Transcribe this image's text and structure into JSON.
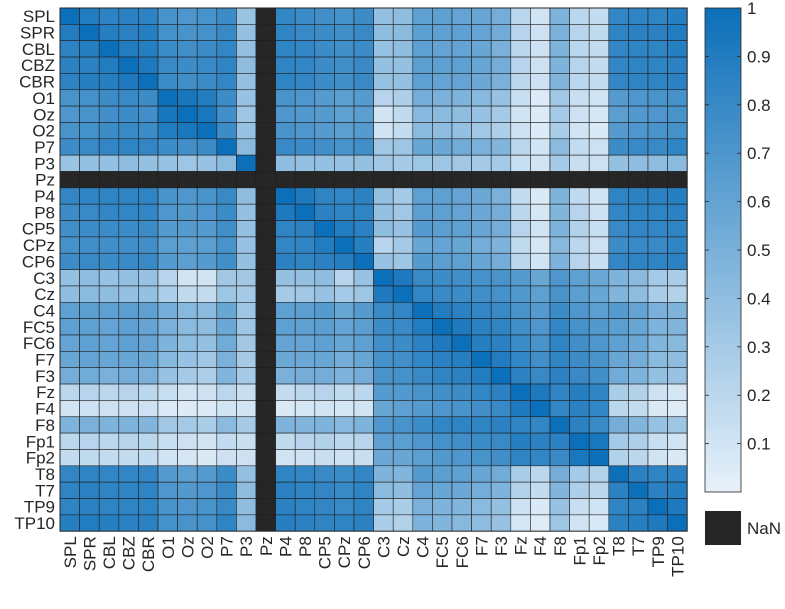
{
  "chart_data": {
    "type": "heatmap",
    "labels": [
      "SPL",
      "SPR",
      "CBL",
      "CBZ",
      "CBR",
      "O1",
      "Oz",
      "O2",
      "P7",
      "P3",
      "Pz",
      "P4",
      "P8",
      "CP5",
      "CPz",
      "CP6",
      "C3",
      "Cz",
      "C4",
      "FC5",
      "FC6",
      "F7",
      "F3",
      "Fz",
      "F4",
      "F8",
      "Fp1",
      "Fp2",
      "T8",
      "T7",
      "TP9",
      "TP10"
    ],
    "nan_index": 10,
    "values": [
      [
        1.0,
        0.9,
        0.85,
        0.86,
        0.85,
        0.72,
        0.7,
        0.72,
        0.78,
        0.35,
        null,
        0.82,
        0.78,
        0.76,
        0.74,
        0.78,
        0.38,
        0.4,
        0.62,
        0.62,
        0.6,
        0.58,
        0.52,
        0.2,
        0.1,
        0.48,
        0.2,
        0.16,
        0.82,
        0.84,
        0.84,
        0.88
      ],
      [
        0.9,
        1.0,
        0.88,
        0.86,
        0.88,
        0.74,
        0.72,
        0.74,
        0.8,
        0.38,
        null,
        0.84,
        0.8,
        0.78,
        0.76,
        0.8,
        0.4,
        0.42,
        0.64,
        0.62,
        0.62,
        0.6,
        0.54,
        0.22,
        0.12,
        0.5,
        0.22,
        0.18,
        0.84,
        0.86,
        0.86,
        0.9
      ],
      [
        0.85,
        0.88,
        1.0,
        0.9,
        0.88,
        0.78,
        0.76,
        0.78,
        0.82,
        0.38,
        null,
        0.84,
        0.82,
        0.78,
        0.76,
        0.78,
        0.36,
        0.4,
        0.62,
        0.6,
        0.6,
        0.58,
        0.5,
        0.2,
        0.12,
        0.48,
        0.2,
        0.16,
        0.82,
        0.84,
        0.84,
        0.88
      ],
      [
        0.86,
        0.86,
        0.9,
        1.0,
        0.92,
        0.8,
        0.78,
        0.8,
        0.84,
        0.4,
        null,
        0.84,
        0.82,
        0.78,
        0.76,
        0.8,
        0.38,
        0.38,
        0.64,
        0.62,
        0.62,
        0.58,
        0.52,
        0.22,
        0.12,
        0.48,
        0.22,
        0.16,
        0.82,
        0.84,
        0.84,
        0.86
      ],
      [
        0.85,
        0.88,
        0.88,
        0.92,
        1.0,
        0.78,
        0.76,
        0.78,
        0.82,
        0.38,
        null,
        0.84,
        0.82,
        0.78,
        0.76,
        0.8,
        0.36,
        0.38,
        0.62,
        0.6,
        0.6,
        0.56,
        0.5,
        0.2,
        0.12,
        0.46,
        0.2,
        0.16,
        0.82,
        0.84,
        0.84,
        0.86
      ],
      [
        0.72,
        0.74,
        0.78,
        0.8,
        0.78,
        1.0,
        0.95,
        0.9,
        0.78,
        0.36,
        null,
        0.72,
        0.7,
        0.66,
        0.64,
        0.66,
        0.22,
        0.26,
        0.52,
        0.5,
        0.48,
        0.44,
        0.36,
        0.14,
        0.05,
        0.32,
        0.14,
        0.1,
        0.66,
        0.7,
        0.72,
        0.74
      ],
      [
        0.7,
        0.72,
        0.76,
        0.78,
        0.76,
        0.95,
        1.0,
        0.94,
        0.76,
        0.34,
        null,
        0.7,
        0.68,
        0.66,
        0.62,
        0.64,
        0.1,
        0.18,
        0.44,
        0.42,
        0.4,
        0.36,
        0.3,
        0.1,
        0.05,
        0.3,
        0.12,
        0.08,
        0.64,
        0.68,
        0.7,
        0.72
      ],
      [
        0.72,
        0.74,
        0.78,
        0.8,
        0.78,
        0.9,
        0.94,
        1.0,
        0.78,
        0.36,
        null,
        0.72,
        0.7,
        0.66,
        0.64,
        0.66,
        0.1,
        0.16,
        0.42,
        0.4,
        0.38,
        0.32,
        0.26,
        0.12,
        0.05,
        0.28,
        0.1,
        0.06,
        0.66,
        0.7,
        0.72,
        0.74
      ],
      [
        0.78,
        0.8,
        0.82,
        0.84,
        0.82,
        0.78,
        0.76,
        0.78,
        1.0,
        0.42,
        null,
        0.8,
        0.78,
        0.76,
        0.72,
        0.76,
        0.32,
        0.34,
        0.58,
        0.56,
        0.54,
        0.5,
        0.46,
        0.2,
        0.1,
        0.42,
        0.16,
        0.12,
        0.78,
        0.8,
        0.8,
        0.84
      ],
      [
        0.35,
        0.38,
        0.38,
        0.4,
        0.38,
        0.36,
        0.34,
        0.36,
        0.42,
        1.0,
        null,
        0.4,
        0.38,
        0.38,
        0.36,
        0.38,
        0.32,
        0.3,
        0.34,
        0.34,
        0.32,
        0.3,
        0.3,
        0.14,
        0.1,
        0.3,
        0.14,
        0.12,
        0.38,
        0.4,
        0.4,
        0.42
      ],
      [
        null,
        null,
        null,
        null,
        null,
        null,
        null,
        null,
        null,
        null,
        null,
        null,
        null,
        null,
        null,
        null,
        null,
        null,
        null,
        null,
        null,
        null,
        null,
        null,
        null,
        null,
        null,
        null,
        null,
        null,
        null,
        null
      ],
      [
        0.82,
        0.84,
        0.84,
        0.84,
        0.84,
        0.72,
        0.7,
        0.72,
        0.8,
        0.4,
        null,
        1.0,
        0.92,
        0.84,
        0.82,
        0.86,
        0.38,
        0.3,
        0.62,
        0.62,
        0.6,
        0.56,
        0.5,
        0.16,
        0.06,
        0.48,
        0.18,
        0.1,
        0.84,
        0.86,
        0.86,
        0.88
      ],
      [
        0.78,
        0.8,
        0.82,
        0.82,
        0.82,
        0.7,
        0.68,
        0.7,
        0.78,
        0.38,
        null,
        0.92,
        1.0,
        0.86,
        0.84,
        0.84,
        0.38,
        0.32,
        0.64,
        0.62,
        0.6,
        0.56,
        0.52,
        0.2,
        0.08,
        0.46,
        0.22,
        0.12,
        0.82,
        0.84,
        0.84,
        0.86
      ],
      [
        0.76,
        0.78,
        0.78,
        0.78,
        0.78,
        0.66,
        0.66,
        0.66,
        0.76,
        0.38,
        null,
        0.84,
        0.86,
        1.0,
        0.9,
        0.86,
        0.4,
        0.36,
        0.66,
        0.64,
        0.62,
        0.58,
        0.52,
        0.22,
        0.1,
        0.48,
        0.24,
        0.14,
        0.8,
        0.82,
        0.82,
        0.84
      ],
      [
        0.74,
        0.76,
        0.76,
        0.76,
        0.76,
        0.64,
        0.62,
        0.64,
        0.72,
        0.36,
        null,
        0.82,
        0.84,
        0.9,
        1.0,
        0.88,
        0.22,
        0.3,
        0.58,
        0.6,
        0.58,
        0.52,
        0.48,
        0.18,
        0.08,
        0.44,
        0.2,
        0.12,
        0.78,
        0.8,
        0.8,
        0.84
      ],
      [
        0.78,
        0.8,
        0.78,
        0.8,
        0.8,
        0.66,
        0.64,
        0.66,
        0.76,
        0.38,
        null,
        0.86,
        0.84,
        0.86,
        0.88,
        1.0,
        0.36,
        0.34,
        0.66,
        0.64,
        0.62,
        0.58,
        0.52,
        0.2,
        0.1,
        0.48,
        0.22,
        0.14,
        0.82,
        0.84,
        0.84,
        0.86
      ],
      [
        0.38,
        0.4,
        0.36,
        0.38,
        0.36,
        0.22,
        0.1,
        0.1,
        0.32,
        0.32,
        null,
        0.38,
        0.38,
        0.4,
        0.22,
        0.36,
        1.0,
        0.92,
        0.8,
        0.78,
        0.76,
        0.74,
        0.72,
        0.66,
        0.58,
        0.7,
        0.62,
        0.56,
        0.48,
        0.42,
        0.3,
        0.28
      ],
      [
        0.4,
        0.42,
        0.4,
        0.38,
        0.38,
        0.26,
        0.18,
        0.16,
        0.34,
        0.3,
        null,
        0.3,
        0.32,
        0.36,
        0.3,
        0.34,
        0.92,
        1.0,
        0.82,
        0.8,
        0.78,
        0.76,
        0.74,
        0.68,
        0.62,
        0.72,
        0.64,
        0.58,
        0.46,
        0.4,
        0.28,
        0.24
      ],
      [
        0.62,
        0.64,
        0.62,
        0.64,
        0.62,
        0.52,
        0.44,
        0.42,
        0.58,
        0.34,
        null,
        0.62,
        0.64,
        0.66,
        0.58,
        0.66,
        0.8,
        0.82,
        1.0,
        0.9,
        0.86,
        0.82,
        0.8,
        0.72,
        0.66,
        0.78,
        0.7,
        0.64,
        0.66,
        0.6,
        0.5,
        0.48
      ],
      [
        0.62,
        0.62,
        0.6,
        0.62,
        0.6,
        0.5,
        0.42,
        0.4,
        0.56,
        0.34,
        null,
        0.62,
        0.62,
        0.64,
        0.6,
        0.64,
        0.78,
        0.8,
        0.9,
        1.0,
        0.92,
        0.86,
        0.84,
        0.76,
        0.7,
        0.82,
        0.74,
        0.68,
        0.64,
        0.58,
        0.48,
        0.46
      ],
      [
        0.6,
        0.62,
        0.6,
        0.62,
        0.6,
        0.48,
        0.4,
        0.38,
        0.54,
        0.32,
        null,
        0.6,
        0.6,
        0.62,
        0.58,
        0.62,
        0.76,
        0.78,
        0.86,
        0.92,
        1.0,
        0.88,
        0.86,
        0.78,
        0.72,
        0.84,
        0.76,
        0.7,
        0.62,
        0.56,
        0.46,
        0.44
      ],
      [
        0.58,
        0.6,
        0.58,
        0.58,
        0.56,
        0.44,
        0.36,
        0.32,
        0.5,
        0.3,
        null,
        0.56,
        0.56,
        0.58,
        0.52,
        0.58,
        0.74,
        0.76,
        0.82,
        0.86,
        0.88,
        1.0,
        0.9,
        0.82,
        0.76,
        0.84,
        0.78,
        0.72,
        0.58,
        0.52,
        0.42,
        0.4
      ],
      [
        0.52,
        0.54,
        0.5,
        0.52,
        0.5,
        0.36,
        0.3,
        0.26,
        0.46,
        0.3,
        null,
        0.5,
        0.52,
        0.52,
        0.48,
        0.52,
        0.72,
        0.74,
        0.8,
        0.84,
        0.86,
        0.9,
        1.0,
        0.86,
        0.8,
        0.86,
        0.8,
        0.76,
        0.54,
        0.48,
        0.38,
        0.36
      ],
      [
        0.2,
        0.22,
        0.2,
        0.22,
        0.2,
        0.14,
        0.1,
        0.12,
        0.2,
        0.14,
        null,
        0.16,
        0.2,
        0.22,
        0.18,
        0.2,
        0.66,
        0.68,
        0.72,
        0.76,
        0.78,
        0.82,
        0.86,
        1.0,
        0.92,
        0.84,
        0.88,
        0.84,
        0.28,
        0.24,
        0.12,
        0.08
      ],
      [
        0.1,
        0.12,
        0.12,
        0.12,
        0.12,
        0.05,
        0.05,
        0.05,
        0.1,
        0.1,
        null,
        0.06,
        0.08,
        0.1,
        0.08,
        0.1,
        0.58,
        0.62,
        0.66,
        0.7,
        0.72,
        0.76,
        0.8,
        0.92,
        1.0,
        0.82,
        0.86,
        0.82,
        0.2,
        0.16,
        0.06,
        0.04
      ],
      [
        0.48,
        0.5,
        0.48,
        0.48,
        0.46,
        0.32,
        0.3,
        0.28,
        0.42,
        0.3,
        null,
        0.48,
        0.46,
        0.48,
        0.44,
        0.48,
        0.7,
        0.72,
        0.78,
        0.82,
        0.84,
        0.84,
        0.86,
        0.84,
        0.82,
        1.0,
        0.86,
        0.8,
        0.52,
        0.46,
        0.36,
        0.34
      ],
      [
        0.2,
        0.22,
        0.2,
        0.22,
        0.2,
        0.14,
        0.12,
        0.1,
        0.16,
        0.14,
        null,
        0.18,
        0.22,
        0.24,
        0.2,
        0.22,
        0.62,
        0.64,
        0.7,
        0.74,
        0.76,
        0.78,
        0.8,
        0.88,
        0.86,
        0.86,
        1.0,
        0.94,
        0.3,
        0.26,
        0.14,
        0.1
      ],
      [
        0.16,
        0.18,
        0.16,
        0.16,
        0.16,
        0.1,
        0.08,
        0.06,
        0.12,
        0.12,
        null,
        0.1,
        0.12,
        0.14,
        0.12,
        0.14,
        0.56,
        0.58,
        0.64,
        0.68,
        0.7,
        0.72,
        0.76,
        0.84,
        0.82,
        0.8,
        0.94,
        1.0,
        0.24,
        0.2,
        0.1,
        0.06
      ],
      [
        0.82,
        0.84,
        0.82,
        0.82,
        0.82,
        0.66,
        0.64,
        0.66,
        0.78,
        0.38,
        null,
        0.84,
        0.82,
        0.8,
        0.78,
        0.82,
        0.48,
        0.46,
        0.66,
        0.64,
        0.62,
        0.58,
        0.54,
        0.28,
        0.2,
        0.52,
        0.3,
        0.24,
        1.0,
        0.86,
        0.84,
        0.86
      ],
      [
        0.84,
        0.86,
        0.84,
        0.84,
        0.84,
        0.7,
        0.68,
        0.7,
        0.8,
        0.4,
        null,
        0.86,
        0.84,
        0.82,
        0.8,
        0.84,
        0.42,
        0.4,
        0.6,
        0.58,
        0.56,
        0.52,
        0.48,
        0.24,
        0.16,
        0.46,
        0.26,
        0.2,
        0.86,
        1.0,
        0.86,
        0.88
      ],
      [
        0.84,
        0.86,
        0.84,
        0.84,
        0.84,
        0.72,
        0.7,
        0.72,
        0.8,
        0.4,
        null,
        0.86,
        0.84,
        0.82,
        0.8,
        0.84,
        0.3,
        0.28,
        0.5,
        0.48,
        0.46,
        0.42,
        0.38,
        0.12,
        0.06,
        0.36,
        0.14,
        0.1,
        0.84,
        0.86,
        1.0,
        0.92
      ],
      [
        0.88,
        0.9,
        0.88,
        0.86,
        0.86,
        0.74,
        0.72,
        0.74,
        0.84,
        0.42,
        null,
        0.88,
        0.86,
        0.84,
        0.84,
        0.86,
        0.28,
        0.24,
        0.48,
        0.46,
        0.44,
        0.4,
        0.36,
        0.08,
        0.04,
        0.34,
        0.1,
        0.06,
        0.86,
        0.88,
        0.92,
        1.0
      ]
    ],
    "colorbar": {
      "min": 0,
      "max": 1,
      "ticks": [
        0.1,
        0.2,
        0.3,
        0.4,
        0.5,
        0.6,
        0.7,
        0.8,
        0.9,
        1
      ],
      "tick_labels": [
        "0.1",
        "0.2",
        "0.3",
        "0.4",
        "0.5",
        "0.6",
        "0.7",
        "0.8",
        "0.9",
        "1"
      ],
      "low_color": "#e7f1fa",
      "high_color": "#0c6fb9"
    },
    "nan_legend": {
      "label": "NaN",
      "color": "#262626"
    }
  }
}
